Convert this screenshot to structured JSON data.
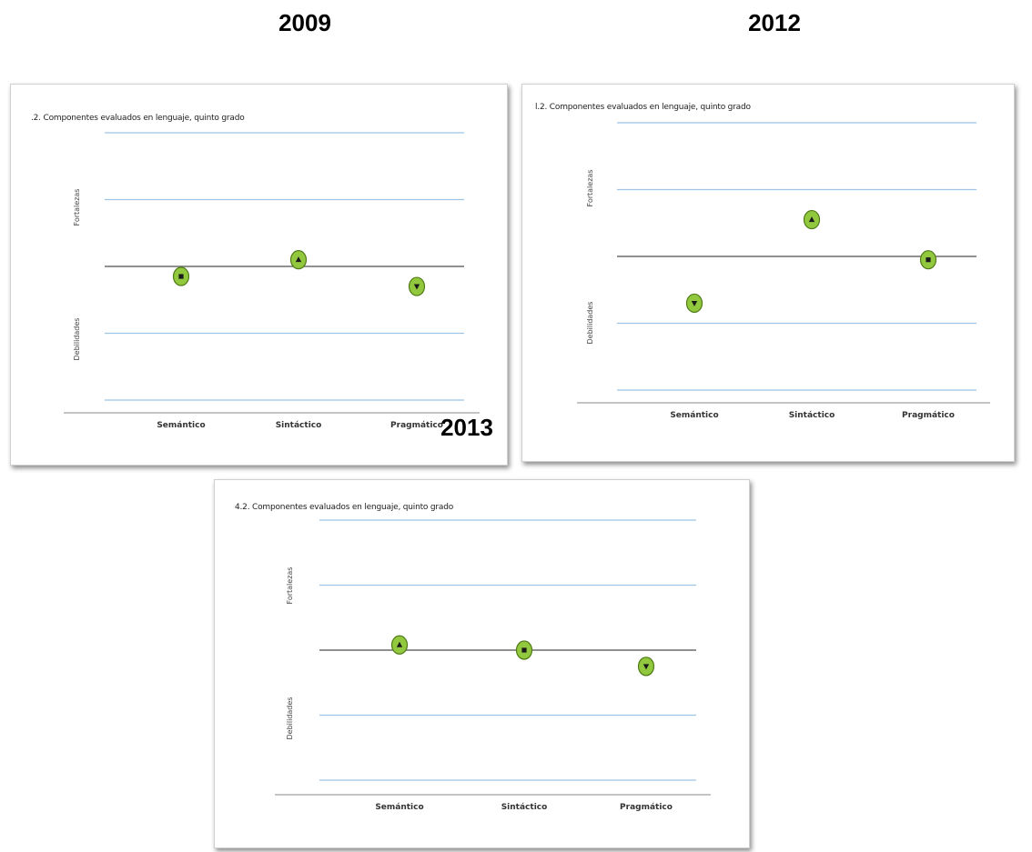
{
  "year_labels": {
    "y2009": "2009",
    "y2012": "2012",
    "y2013": "2013"
  },
  "colors": {
    "gridline": "#9dc3e6",
    "baseline": "#6b6b6b",
    "axis": "#8a8a8a",
    "marker": "#92c83e",
    "marker_ring": "#4f7a16",
    "glyph": "#1a1a1a"
  },
  "chart_data": [
    {
      "type": "scatter",
      "year": "2009",
      "title": ".2. Componentes evaluados en lenguaje, quinto grado",
      "categories": [
        "Semántico",
        "Sintáctico",
        "Pragmático"
      ],
      "upper_label": "Fortalezas",
      "lower_label": "Debilidades",
      "ylim": [
        -2,
        2
      ],
      "grid": true,
      "values": [
        -0.15,
        0.1,
        -0.3
      ],
      "markers": [
        "square",
        "triangle-up",
        "triangle-down"
      ]
    },
    {
      "type": "scatter",
      "year": "2012",
      "title": "l.2. Componentes evaluados en lenguaje, quinto grado",
      "categories": [
        "Semántico",
        "Sintáctico",
        "Pragmático"
      ],
      "upper_label": "Fortalezas",
      "lower_label": "Debilidades",
      "ylim": [
        -2,
        2
      ],
      "grid": true,
      "values": [
        -0.7,
        0.55,
        -0.05
      ],
      "markers": [
        "triangle-down",
        "triangle-up",
        "square"
      ]
    },
    {
      "type": "scatter",
      "year": "2013",
      "title": "4.2. Componentes evaluados en lenguaje, quinto grado",
      "categories": [
        "Semántico",
        "Sintáctico",
        "Pragmático"
      ],
      "upper_label": "Fortalezas",
      "lower_label": "Debilidades",
      "ylim": [
        -2,
        2
      ],
      "grid": true,
      "values": [
        0.08,
        0.0,
        -0.25
      ],
      "markers": [
        "triangle-up",
        "square",
        "triangle-down"
      ]
    }
  ]
}
